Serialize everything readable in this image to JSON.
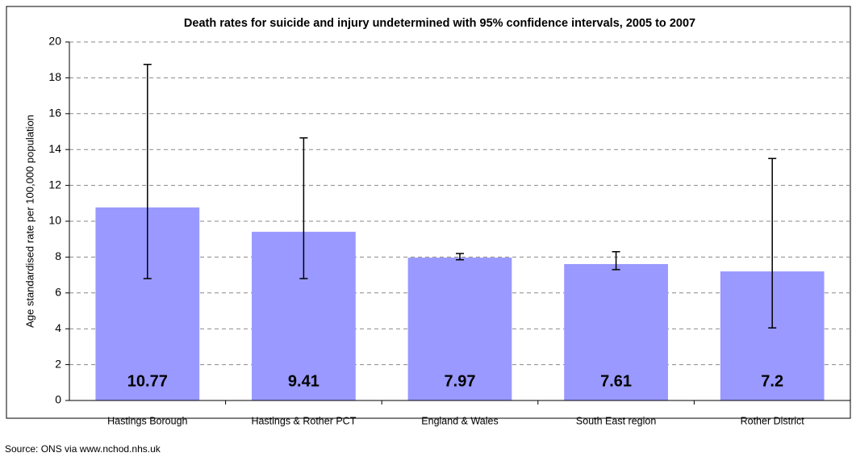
{
  "chart_data": {
    "type": "bar",
    "title": "Death rates for suicide and injury undetermined with 95% confidence intervals, 2005 to 2007",
    "y_label": "Age standardised rate per 100,000 population",
    "source": "Source: ONS via www.nchod.nhs.uk",
    "categories": [
      "Hastings Borough",
      "Hastings & Rother PCT",
      "England & Wales",
      "South East region",
      "Rother District"
    ],
    "values": [
      10.77,
      9.41,
      7.97,
      7.61,
      7.2
    ],
    "ci_lower": [
      6.8,
      6.8,
      7.85,
      7.3,
      4.05
    ],
    "ci_upper": [
      18.75,
      14.65,
      8.2,
      8.3,
      13.5
    ],
    "color": "#9999ff",
    "ylim": [
      0,
      20
    ],
    "yticks": [
      0,
      2,
      4,
      6,
      8,
      10,
      12,
      14,
      16,
      18,
      20
    ],
    "grid": true
  }
}
